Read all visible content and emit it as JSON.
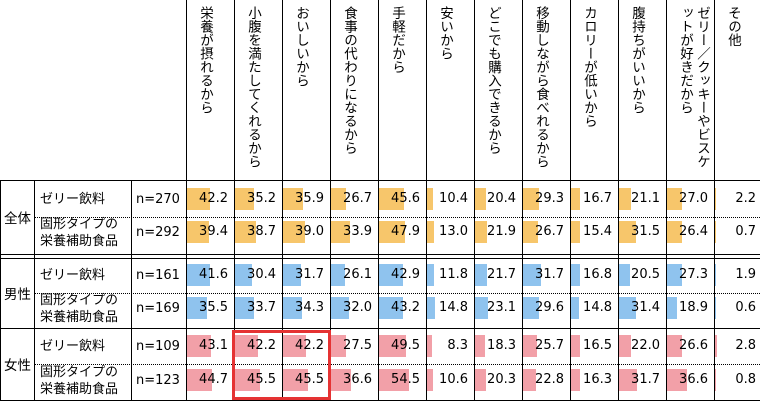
{
  "chart_data": {
    "type": "table",
    "columns": [
      "栄養が摂れるから",
      "小腹を満たしてくれるから",
      "おいしいから",
      "食事の代わりになるから",
      "手軽だから",
      "安いから",
      "どこでも購入できるから",
      "移動しながら食べれるから",
      "カロリーが低いから",
      "腹持ちがいいから",
      "ゼリー／クッキーやビスケットが好きだから",
      "その他"
    ],
    "groups": [
      {
        "label": "全体",
        "color": "#f7c66b",
        "rows": [
          {
            "label_lines": [
              "ゼリー飲料"
            ],
            "n": "n=270",
            "values": [
              "42.2",
              "35.2",
              "35.9",
              "26.7",
              "45.6",
              "10.4",
              "20.4",
              "29.3",
              "16.7",
              "21.1",
              "27.0",
              "2.2"
            ]
          },
          {
            "label_lines": [
              "固形タイプの",
              "栄養補助食品"
            ],
            "n": "n=292",
            "values": [
              "39.4",
              "38.7",
              "39.0",
              "33.9",
              "47.9",
              "13.0",
              "21.9",
              "26.7",
              "15.4",
              "31.5",
              "26.4",
              "0.7"
            ]
          }
        ]
      },
      {
        "label": "男性",
        "color": "#8fc3ee",
        "rows": [
          {
            "label_lines": [
              "ゼリー飲料"
            ],
            "n": "n=161",
            "values": [
              "41.6",
              "30.4",
              "31.7",
              "26.1",
              "42.9",
              "11.8",
              "21.7",
              "31.7",
              "16.8",
              "20.5",
              "27.3",
              "1.9"
            ]
          },
          {
            "label_lines": [
              "固形タイプの",
              "栄養補助食品"
            ],
            "n": "n=169",
            "values": [
              "35.5",
              "33.7",
              "34.3",
              "32.0",
              "43.2",
              "14.8",
              "23.1",
              "29.6",
              "14.8",
              "31.4",
              "18.9",
              "0.6"
            ]
          }
        ]
      },
      {
        "label": "女性",
        "color": "#f2a0a8",
        "rows": [
          {
            "label_lines": [
              "ゼリー飲料"
            ],
            "n": "n=109",
            "values": [
              "43.1",
              "42.2",
              "42.2",
              "27.5",
              "49.5",
              "8.3",
              "18.3",
              "25.7",
              "16.5",
              "22.0",
              "26.6",
              "2.8"
            ]
          },
          {
            "label_lines": [
              "固形タイプの",
              "栄養補助食品"
            ],
            "n": "n=123",
            "values": [
              "44.7",
              "45.5",
              "45.5",
              "36.6",
              "54.5",
              "10.6",
              "20.3",
              "22.8",
              "16.3",
              "31.7",
              "36.6",
              "0.8"
            ]
          }
        ]
      }
    ],
    "highlight": {
      "group": 2,
      "columns": [
        1,
        2
      ],
      "color": "#e53333"
    },
    "scale_max": 100
  }
}
